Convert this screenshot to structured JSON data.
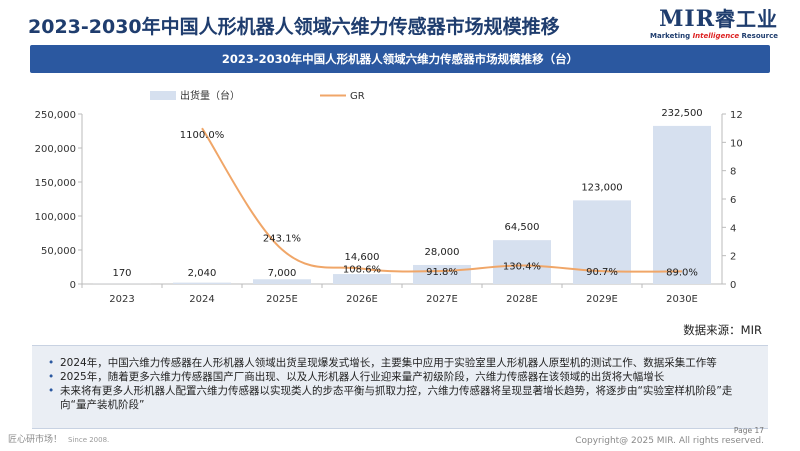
{
  "page": {
    "title": "2023-2030年中国人形机器人领域六维力传感器市场规模推移",
    "banner": "2023-2030年中国人形机器人领域六维力传感器市场规模推移（台）",
    "source": "数据来源：MIR",
    "page_num": "Page 17",
    "footer_left": "匠心研市场！",
    "footer_since": "Since 2008.",
    "footer_right": "Copyright@ 2025 MIR. All rights reserved."
  },
  "logo": {
    "main": "MIR",
    "cn": "睿工业",
    "sub_pre": "Marketing ",
    "sub_mid": "Intelligence",
    "sub_post": " Resource"
  },
  "notes": [
    "2024年，中国六维力传感器在人形机器人领域出货呈现爆发式增长，主要集中应用于实验室里人形机器人原型机的测试工作、数据采集工作等",
    "2025年，随着更多六维力传感器国产厂商出现、以及人形机器人行业迎来量产初级阶段，六维力传感器在该领域的出货将大幅增长",
    "未来将有更多人形机器人配置六维力传感器以实现类人的步态平衡与抓取力控，六维力传感器将呈现显著增长趋势，将逐步由“实验室样机阶段”走向“量产装机阶段”"
  ],
  "chart_data": {
    "type": "bar",
    "categories": [
      "2023",
      "2024",
      "2025E",
      "2026E",
      "2027E",
      "2028E",
      "2029E",
      "2030E"
    ],
    "series": [
      {
        "name": "出货量（台）",
        "type": "bar",
        "values": [
          170,
          2040,
          7000,
          14600,
          28000,
          64500,
          123000,
          232500
        ],
        "labels": [
          "170",
          "2,040",
          "7,000",
          "14,600",
          "28,000",
          "64,500",
          "123,000",
          "232,500"
        ],
        "axis": "left",
        "color": "#d6e0ef"
      },
      {
        "name": "GR",
        "type": "line",
        "values": [
          null,
          11.0,
          2.431,
          1.086,
          0.918,
          1.304,
          0.907,
          0.89
        ],
        "labels": [
          "",
          "1100.0%",
          "243.1%",
          "108.6%",
          "91.8%",
          "130.4%",
          "90.7%",
          "89.0%"
        ],
        "axis": "right",
        "color": "#f0a668"
      }
    ],
    "y_left": {
      "min": 0,
      "max": 250000,
      "ticks": [
        "0",
        "50,000",
        "100,000",
        "150,000",
        "200,000",
        "250,000"
      ]
    },
    "y_right": {
      "min": 0,
      "max": 12,
      "ticks": [
        "0",
        "2",
        "4",
        "6",
        "8",
        "10",
        "12"
      ]
    },
    "grid": false,
    "legend_position": "top-left"
  }
}
